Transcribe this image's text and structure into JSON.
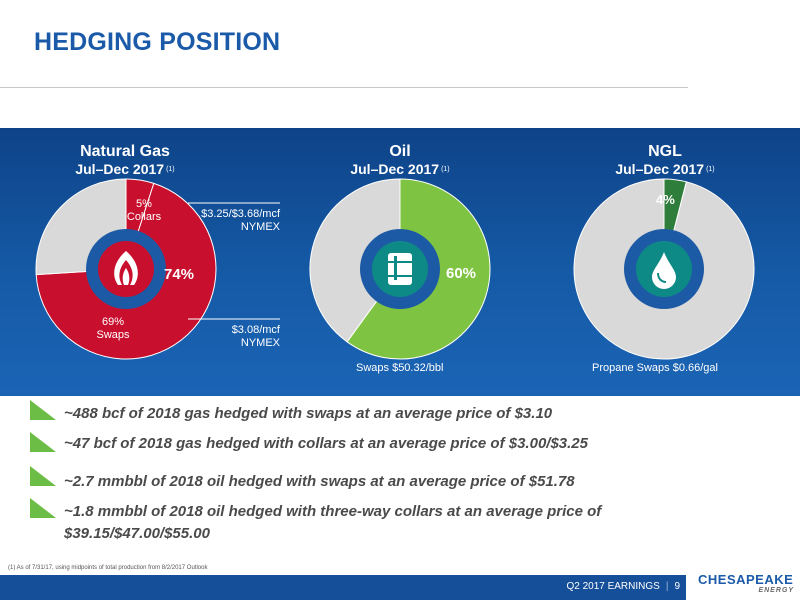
{
  "title": "HEDGING POSITION",
  "charts": [
    {
      "name": "Natural Gas",
      "period": "Jul–Dec 2017",
      "note_ref": "(1)",
      "center_label": "74%",
      "segments": [
        {
          "label": "5%",
          "label2": "Collars",
          "value": 5,
          "color": "#c8102e"
        },
        {
          "label": "69%",
          "label2": "Swaps",
          "value": 69,
          "color": "#c8102e"
        },
        {
          "label": "",
          "label2": "",
          "value": 26,
          "color": "#d9d9d9"
        }
      ],
      "annotations": [
        {
          "line1": "$3.25/$3.68/mcf",
          "line2": "NYMEX"
        },
        {
          "line1": "$3.08/mcf",
          "line2": "NYMEX"
        }
      ],
      "icon": "flame-icon"
    },
    {
      "name": "Oil",
      "period": "Jul–Dec 2017",
      "note_ref": "(1)",
      "center_label": "60%",
      "segments": [
        {
          "value": 60,
          "color": "#7fc342"
        },
        {
          "value": 40,
          "color": "#d9d9d9"
        }
      ],
      "caption": "Swaps $50.32/bbl",
      "icon": "oil-barrel-icon"
    },
    {
      "name": "NGL",
      "period": "Jul–Dec 2017",
      "note_ref": "(1)",
      "center_label": "4%",
      "segments": [
        {
          "value": 4,
          "color": "#2e7d3a"
        },
        {
          "value": 96,
          "color": "#d9d9d9"
        }
      ],
      "caption": "Propane Swaps $0.66/gal",
      "icon": "droplet-icon"
    }
  ],
  "bullets": [
    "~488 bcf of 2018 gas hedged with swaps at an average price of $3.10",
    "~47 bcf of 2018 gas hedged with collars at an average price of $3.00/$3.25",
    "~2.7 mmbbl of 2018 oil hedged with swaps at an average price of $51.78",
    "~1.8 mmbbl of 2018 oil hedged with three-way collars at an average price of",
    "$39.15/$47.00/$55.00"
  ],
  "footnote": "(1)  As of 7/31/17, using midpoints of total production from 8/2/2017 Outlook",
  "footer": {
    "label": "Q2 2017 EARNINGS",
    "page": "9"
  },
  "logo": {
    "brand": "CHESAPEAKE",
    "sub": "ENERGY"
  },
  "colors": {
    "panel": "#134f9b",
    "title": "#1a5aa8",
    "bullet": "#6cbd45",
    "center_ring": "#1c5aa5",
    "icon_bg": "#0e8a86"
  }
}
